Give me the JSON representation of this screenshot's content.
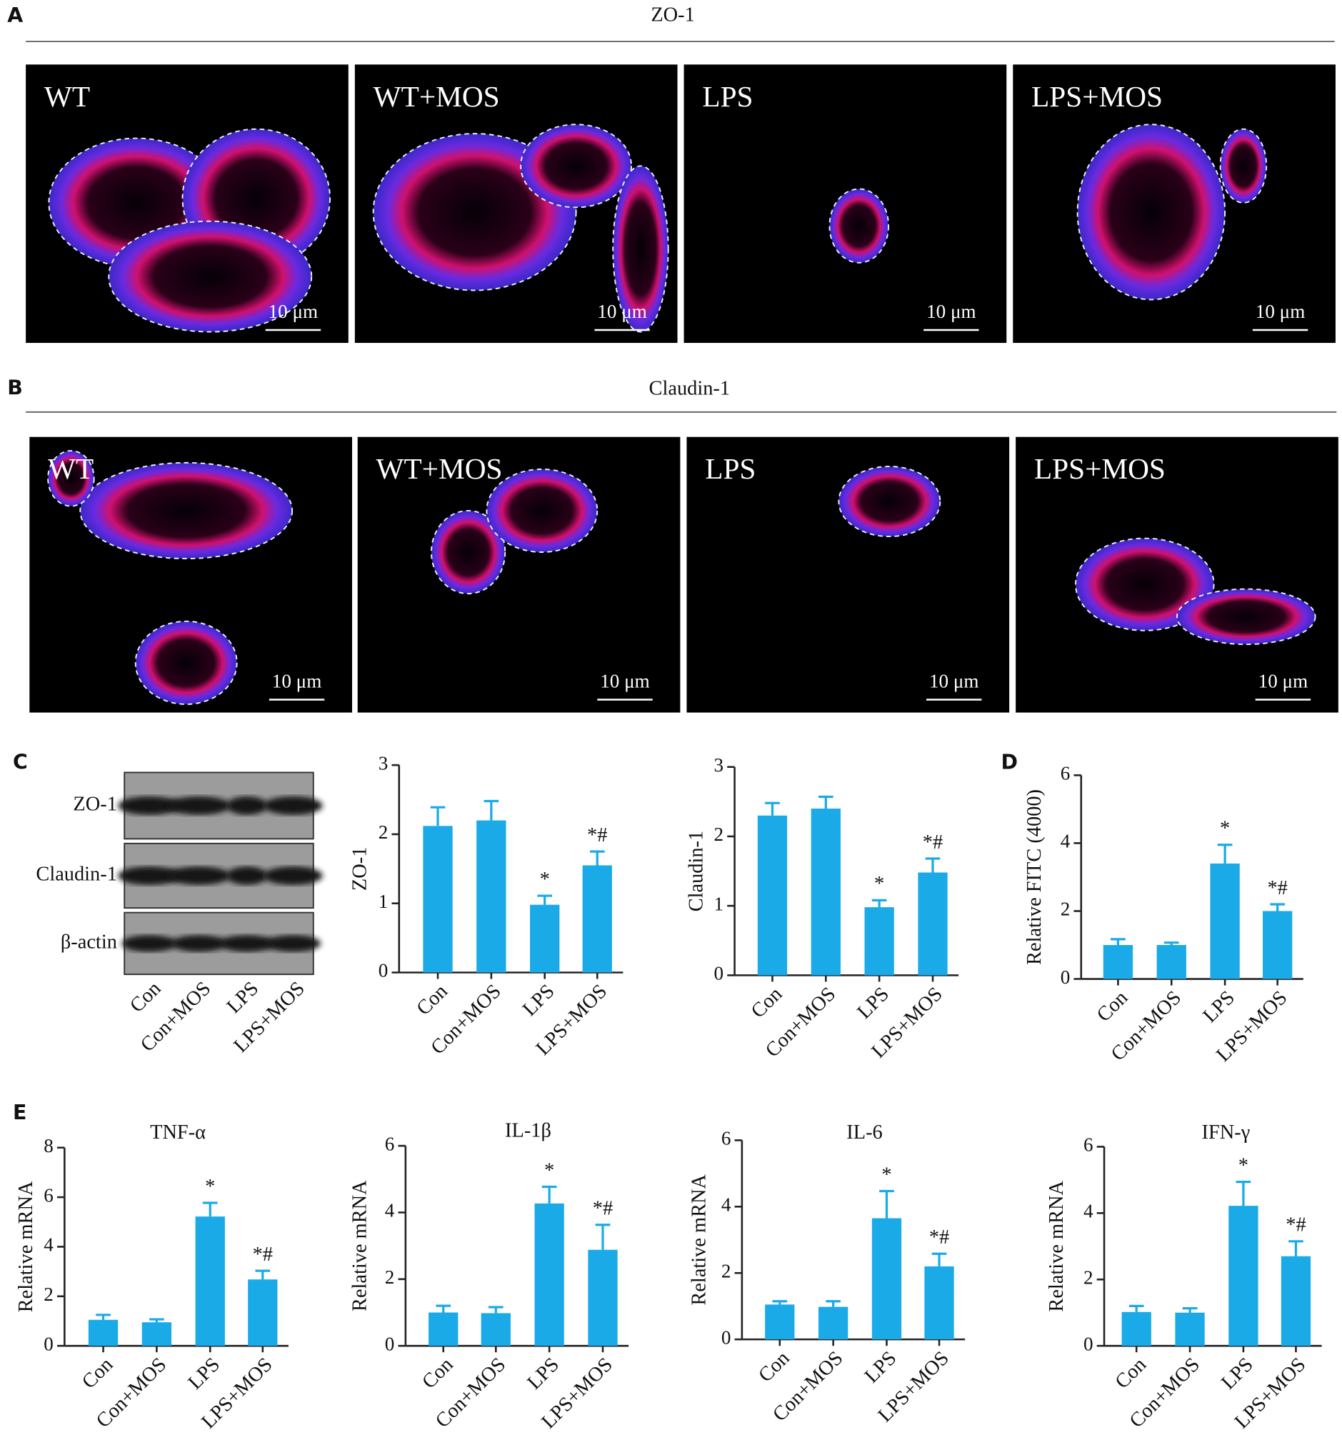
{
  "figure": {
    "panel_A": {
      "label": "A",
      "title": "ZO-1",
      "images": [
        {
          "label": "WT",
          "scale_bar": "10 μm"
        },
        {
          "label": "WT+MOS",
          "scale_bar": "10 μm"
        },
        {
          "label": "LPS",
          "scale_bar": "10 μm"
        },
        {
          "label": "LPS+MOS",
          "scale_bar": "10 μm"
        }
      ]
    },
    "panel_B": {
      "label": "B",
      "title": "Claudin-1",
      "images": [
        {
          "label": "WT",
          "scale_bar": "10 μm"
        },
        {
          "label": "WT+MOS",
          "scale_bar": "10 μm"
        },
        {
          "label": "LPS",
          "scale_bar": "10 μm"
        },
        {
          "label": "LPS+MOS",
          "scale_bar": "10 μm"
        }
      ]
    },
    "panel_C": {
      "label": "C",
      "blot_rows": [
        "ZO-1",
        "Claudin-1",
        "β-actin"
      ],
      "blot_lanes": [
        "Con",
        "Con+MOS",
        "LPS",
        "LPS+MOS"
      ]
    },
    "panel_D": {
      "label": "D"
    },
    "panel_E": {
      "label": "E"
    }
  },
  "chart_data": [
    {
      "type": "bar",
      "ylabel": "ZO-1",
      "categories": [
        "Con",
        "Con+MOS",
        "LPS",
        "LPS+MOS"
      ],
      "values": [
        2.12,
        2.2,
        0.98,
        1.55
      ],
      "errors": [
        0.27,
        0.28,
        0.13,
        0.2
      ],
      "annotations": [
        null,
        null,
        "*",
        "*#"
      ],
      "color": "#1aaae8",
      "ylim": [
        0,
        3
      ],
      "yticks": [
        0,
        1,
        2,
        3
      ]
    },
    {
      "type": "bar",
      "ylabel": "Claudin-1",
      "categories": [
        "Con",
        "Con+MOS",
        "LPS",
        "LPS+MOS"
      ],
      "values": [
        2.3,
        2.4,
        0.98,
        1.48
      ],
      "errors": [
        0.18,
        0.17,
        0.1,
        0.2
      ],
      "annotations": [
        null,
        null,
        "*",
        "*#"
      ],
      "color": "#1aaae8",
      "ylim": [
        0,
        3
      ],
      "yticks": [
        0,
        1,
        2,
        3
      ]
    },
    {
      "type": "bar",
      "ylabel": "Relative FITC (4000)",
      "categories": [
        "Con",
        "Con+MOS",
        "LPS",
        "LPS+MOS"
      ],
      "values": [
        1.0,
        1.0,
        3.4,
        2.0
      ],
      "errors": [
        0.17,
        0.07,
        0.55,
        0.2
      ],
      "annotations": [
        null,
        null,
        "*",
        "*#"
      ],
      "color": "#1aaae8",
      "ylim": [
        0,
        6
      ],
      "yticks": [
        0,
        2,
        4,
        6
      ]
    },
    {
      "type": "bar",
      "title": "TNF-α",
      "ylabel": "Relative mRNA",
      "categories": [
        "Con",
        "Con+MOS",
        "LPS",
        "LPS+MOS"
      ],
      "values": [
        1.05,
        0.95,
        5.22,
        2.68
      ],
      "errors": [
        0.2,
        0.12,
        0.55,
        0.35
      ],
      "annotations": [
        null,
        null,
        "*",
        "*#"
      ],
      "color": "#1aaae8",
      "ylim": [
        0,
        8
      ],
      "yticks": [
        0,
        2,
        4,
        6,
        8
      ]
    },
    {
      "type": "bar",
      "title": "IL-1β",
      "ylabel": "Relative mRNA",
      "categories": [
        "Con",
        "Con+MOS",
        "LPS",
        "LPS+MOS"
      ],
      "values": [
        1.0,
        0.98,
        4.27,
        2.88
      ],
      "errors": [
        0.2,
        0.18,
        0.5,
        0.75
      ],
      "annotations": [
        null,
        null,
        "*",
        "*#"
      ],
      "color": "#1aaae8",
      "ylim": [
        0,
        6
      ],
      "yticks": [
        0,
        2,
        4,
        6
      ]
    },
    {
      "type": "bar",
      "title": "IL-6",
      "ylabel": "Relative mRNA",
      "categories": [
        "Con",
        "Con+MOS",
        "LPS",
        "LPS+MOS"
      ],
      "values": [
        1.05,
        0.98,
        3.65,
        2.2
      ],
      "errors": [
        0.1,
        0.17,
        0.82,
        0.38
      ],
      "annotations": [
        null,
        null,
        "*",
        "*#"
      ],
      "color": "#1aaae8",
      "ylim": [
        0,
        6
      ],
      "yticks": [
        0,
        2,
        4,
        6
      ]
    },
    {
      "type": "bar",
      "title": "IFN-γ",
      "ylabel": "Relative mRNA",
      "categories": [
        "Con",
        "Con+MOS",
        "LPS",
        "LPS+MOS"
      ],
      "values": [
        1.02,
        1.0,
        4.22,
        2.7
      ],
      "errors": [
        0.18,
        0.13,
        0.72,
        0.45
      ],
      "annotations": [
        null,
        null,
        "*",
        "*#"
      ],
      "color": "#1aaae8",
      "ylim": [
        0,
        6
      ],
      "yticks": [
        0,
        2,
        4,
        6
      ]
    }
  ]
}
